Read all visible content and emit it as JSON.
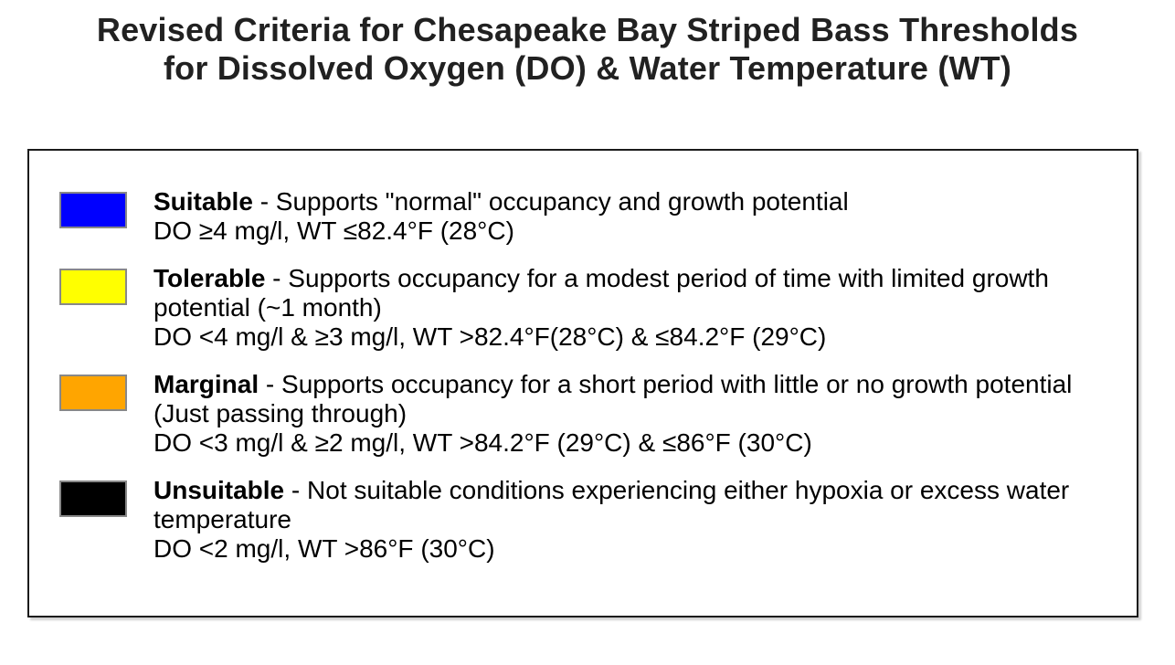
{
  "title": {
    "line1": "Revised Criteria for Chesapeake Bay Striped Bass Thresholds",
    "line2": "for Dissolved Oxygen (DO) & Water Temperature (WT)"
  },
  "legend": {
    "entries": [
      {
        "label": "Suitable",
        "color": "#0000ff",
        "color_name": "blue",
        "description": " - Supports \"normal\" occupancy and growth potential",
        "criteria": "DO ≥4 mg/l, WT ≤82.4°F (28°C)"
      },
      {
        "label": "Tolerable",
        "color": "#ffff00",
        "color_name": "yellow",
        "description": " - Supports occupancy for a modest period of time with limited growth potential (~1 month)",
        "criteria": "DO <4 mg/l & ≥3 mg/l, WT >82.4°F(28°C) & ≤84.2°F (29°C)"
      },
      {
        "label": "Marginal",
        "color": "#ffa500",
        "color_name": "orange",
        "description": " - Supports occupancy for a short period with little or no growth potential (Just passing through)",
        "criteria": "DO <3 mg/l & ≥2 mg/l, WT >84.2°F (29°C) & ≤86°F (30°C)"
      },
      {
        "label": "Unsuitable",
        "color": "#000000",
        "color_name": "black",
        "description": " - Not suitable conditions experiencing either hypoxia or excess water temperature",
        "criteria": "DO <2 mg/l, WT >86°F (30°C)"
      }
    ]
  }
}
